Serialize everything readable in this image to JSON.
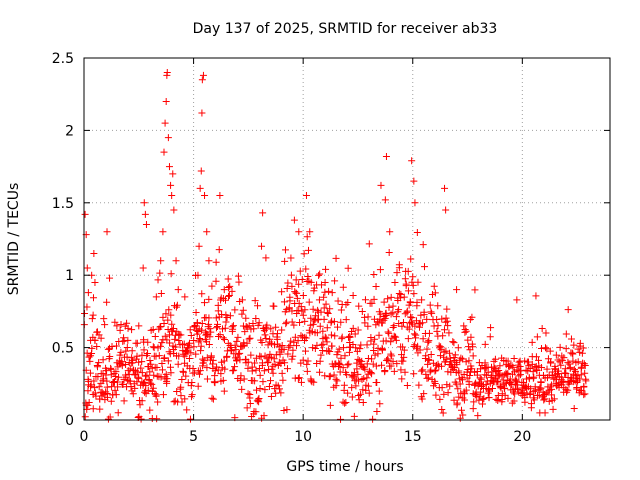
{
  "chart_data": {
    "type": "scatter",
    "title": "Day 137 of 2025, SRMTID for receiver ab33",
    "xlabel": "GPS time / hours",
    "ylabel": "SRMTID / TECUs",
    "xlim": [
      0,
      24
    ],
    "ylim": [
      0,
      2.5
    ],
    "xticks": [
      0,
      5,
      10,
      15,
      20
    ],
    "xtick_labels": [
      "0",
      "5",
      "10",
      "15",
      "20"
    ],
    "yticks": [
      0,
      0.5,
      1,
      1.5,
      2,
      2.5
    ],
    "ytick_labels": [
      "0",
      "0.5",
      "1",
      "1.5",
      "2",
      "2.5"
    ],
    "grid": true,
    "marker": "+",
    "color": "#ff0000",
    "x_extent_hours": [
      0,
      22.9
    ],
    "series": [
      {
        "name": "SRMTID",
        "points": [
          [
            0.05,
            1.42
          ],
          [
            0.1,
            1.28
          ],
          [
            0.15,
            1.05
          ],
          [
            0.2,
            0.88
          ],
          [
            0.3,
            0.55
          ],
          [
            0.35,
            1.0
          ],
          [
            0.45,
            1.15
          ],
          [
            0.5,
            0.95
          ],
          [
            0.9,
            0.7
          ],
          [
            1.05,
            1.3
          ],
          [
            1.5,
            0.65
          ],
          [
            2.0,
            0.55
          ],
          [
            2.5,
            0.65
          ],
          [
            2.7,
            1.05
          ],
          [
            2.75,
            1.5
          ],
          [
            2.8,
            1.42
          ],
          [
            2.85,
            1.35
          ],
          [
            3.2,
            0.5
          ],
          [
            3.3,
            0.85
          ],
          [
            3.5,
            1.1
          ],
          [
            3.6,
            1.3
          ],
          [
            3.65,
            1.85
          ],
          [
            3.7,
            2.05
          ],
          [
            3.75,
            2.2
          ],
          [
            3.78,
            2.38
          ],
          [
            3.8,
            2.4
          ],
          [
            3.85,
            1.95
          ],
          [
            3.9,
            1.75
          ],
          [
            3.95,
            1.62
          ],
          [
            4.0,
            1.55
          ],
          [
            4.05,
            1.7
          ],
          [
            4.1,
            1.45
          ],
          [
            4.2,
            1.1
          ],
          [
            4.3,
            0.9
          ],
          [
            4.6,
            0.85
          ],
          [
            5.2,
            1.0
          ],
          [
            5.25,
            1.2
          ],
          [
            5.3,
            1.6
          ],
          [
            5.35,
            1.72
          ],
          [
            5.38,
            2.12
          ],
          [
            5.4,
            2.35
          ],
          [
            5.45,
            2.38
          ],
          [
            5.5,
            1.55
          ],
          [
            5.6,
            1.3
          ],
          [
            5.7,
            1.1
          ],
          [
            6.2,
            1.55
          ],
          [
            6.4,
            0.9
          ],
          [
            8.1,
            1.2
          ],
          [
            8.15,
            1.43
          ],
          [
            8.3,
            1.12
          ],
          [
            9.6,
            1.38
          ],
          [
            9.8,
            1.3
          ],
          [
            10.15,
            1.55
          ],
          [
            10.3,
            1.3
          ],
          [
            11.0,
            0.95
          ],
          [
            13.55,
            1.62
          ],
          [
            13.75,
            1.52
          ],
          [
            13.8,
            1.82
          ],
          [
            14.95,
            1.79
          ],
          [
            15.05,
            1.65
          ],
          [
            15.1,
            1.5
          ],
          [
            16.45,
            1.6
          ],
          [
            16.5,
            1.45
          ],
          [
            17.0,
            0.9
          ]
        ]
      }
    ]
  }
}
